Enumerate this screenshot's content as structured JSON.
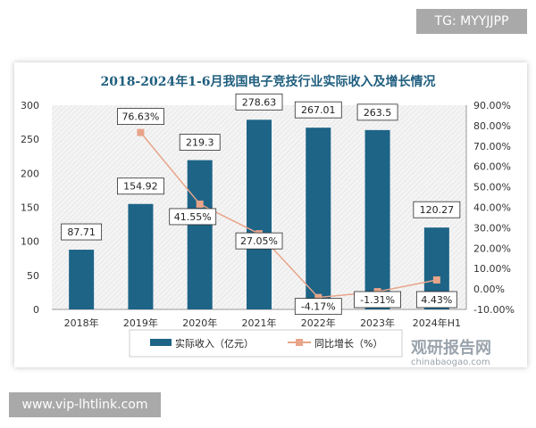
{
  "watermark_top": "TG: MYYJJPP",
  "watermark_bottom": "www.vip-lhtlink.com",
  "logo": {
    "name": "观研报告网",
    "url": "chinabaogao.com"
  },
  "chart_data": {
    "type": "bar+line",
    "title": "2018-2024年1-6月我国电子竞技行业实际收入及增长情况",
    "categories": [
      "2018年",
      "2019年",
      "2020年",
      "2021年",
      "2022年",
      "2023年",
      "2024年H1"
    ],
    "series": [
      {
        "name": "实际收入（亿元）",
        "type": "bar",
        "axis": "left",
        "color": "#1d6487",
        "values": [
          87.71,
          154.92,
          219.3,
          278.63,
          267.01,
          263.5,
          120.27
        ],
        "labels": [
          "87.71",
          "154.92",
          "219.3",
          "278.63",
          "267.01",
          "263.5",
          "120.27"
        ]
      },
      {
        "name": "同比增长（%）",
        "type": "line",
        "axis": "right",
        "color": "#e8a58a",
        "values": [
          null,
          76.63,
          41.55,
          27.05,
          -4.17,
          -1.31,
          4.43
        ],
        "labels": [
          "",
          "76.63%",
          "41.55%",
          "27.05%",
          "-4.17%",
          "-1.31%",
          "4.43%"
        ]
      }
    ],
    "y_left": {
      "range": [
        0,
        300
      ],
      "ticks": [
        "0",
        "50",
        "100",
        "150",
        "200",
        "250",
        "300"
      ]
    },
    "y_right": {
      "range": [
        -10,
        90
      ],
      "ticks": [
        "-10.00%",
        "0.00%",
        "10.00%",
        "20.00%",
        "30.00%",
        "40.00%",
        "50.00%",
        "60.00%",
        "70.00%",
        "80.00%",
        "90.00%"
      ]
    },
    "legend": "bottom",
    "grid": false
  }
}
